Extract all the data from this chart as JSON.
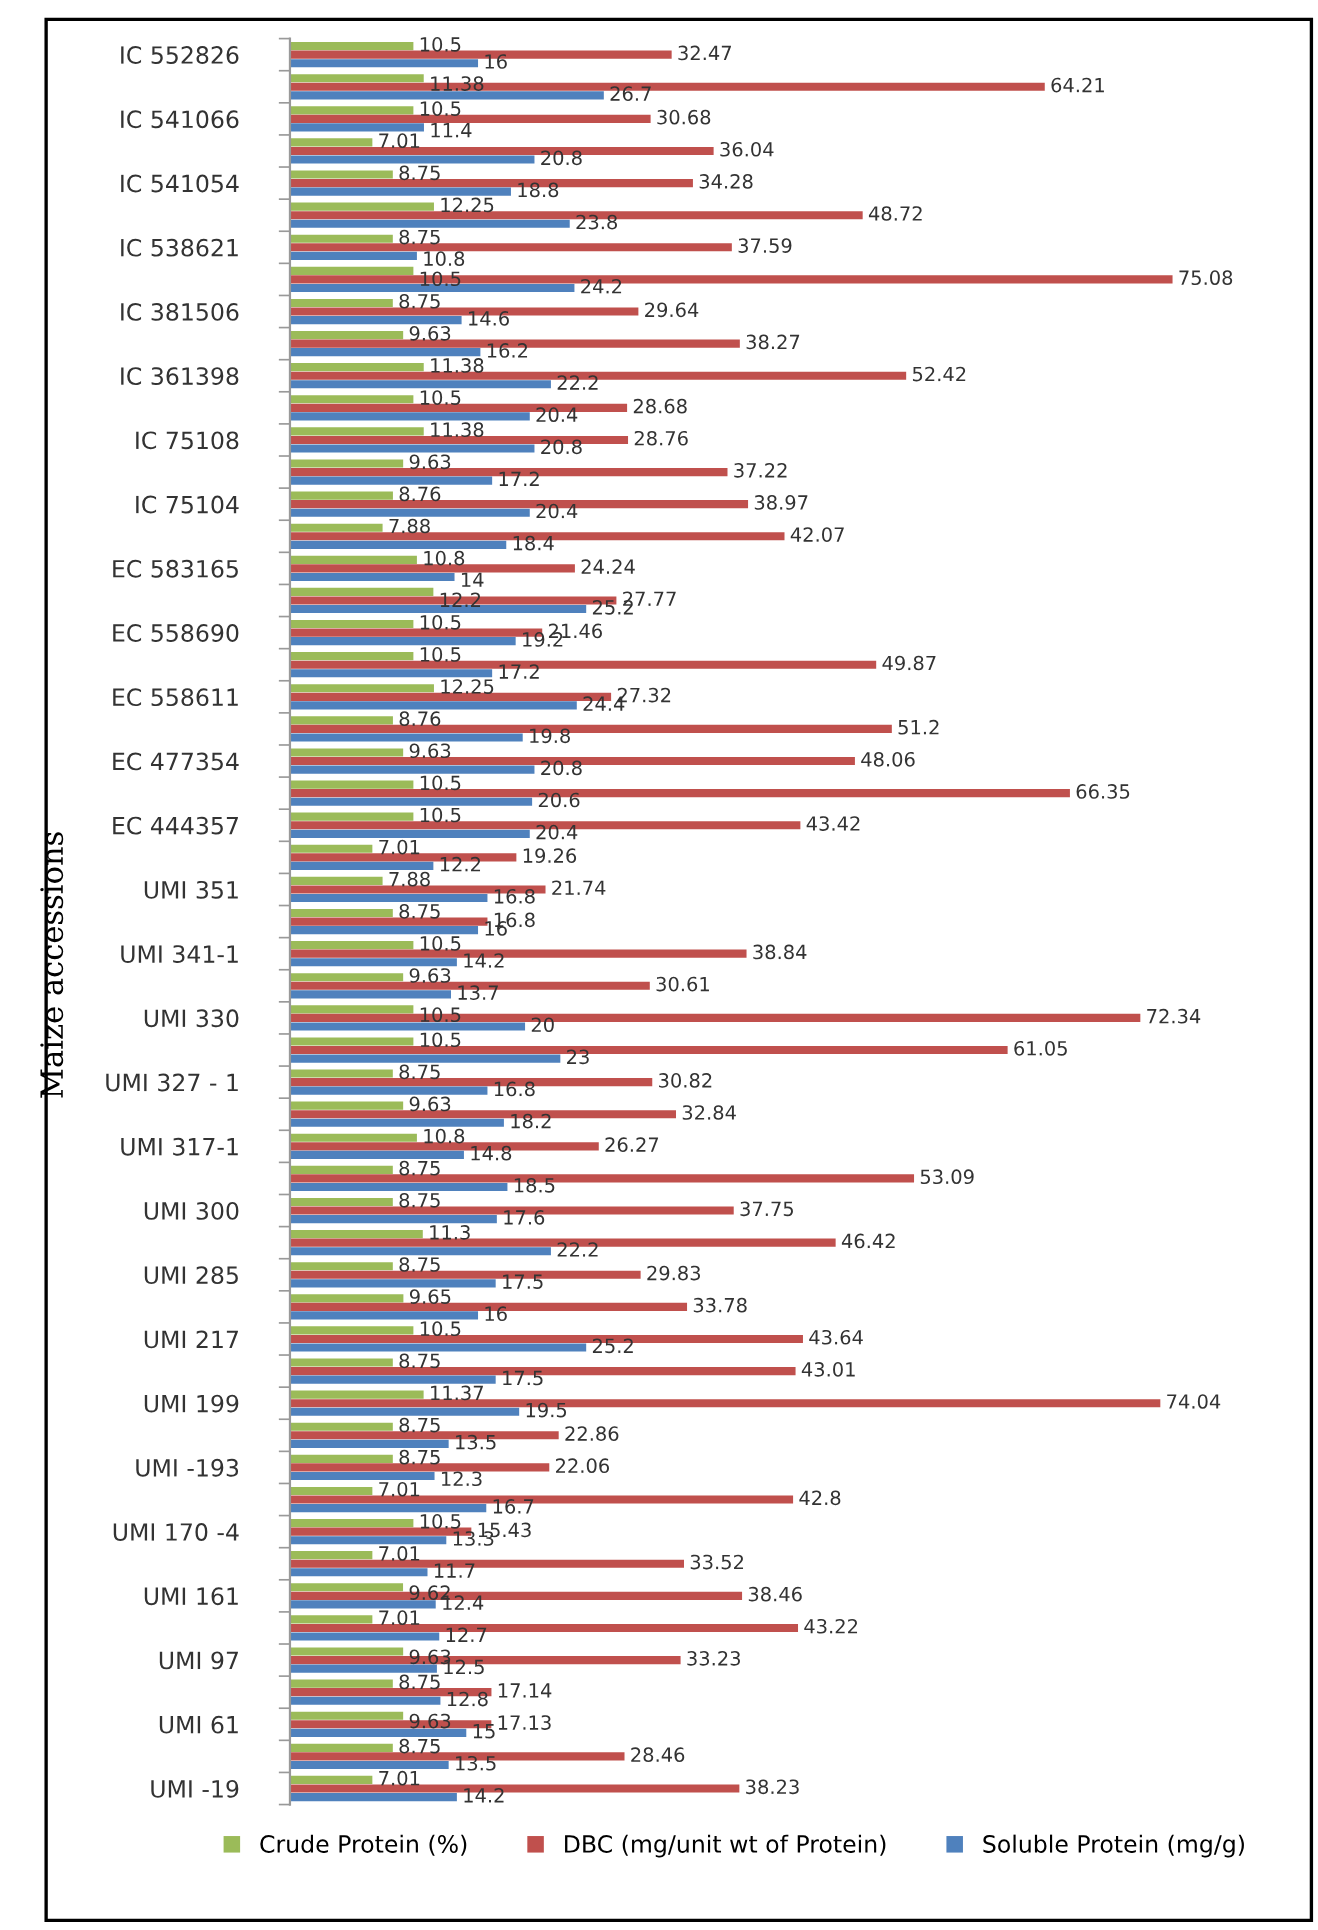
{
  "chart_data": {
    "type": "bar",
    "orientation": "horizontal",
    "ylabel": "Maize accessions",
    "data_labels": true,
    "legend": "bottom",
    "grid": false,
    "categories": [
      "IC 552826",
      null,
      "IC 541066",
      null,
      "IC 541054",
      null,
      "IC 538621",
      null,
      "IC 381506",
      null,
      "IC 361398",
      null,
      "IC 75108",
      null,
      "IC 75104",
      null,
      "EC 583165",
      null,
      "EC 558690",
      null,
      "EC 558611",
      null,
      "EC 477354",
      null,
      "EC 444357",
      null,
      "UMI 351",
      null,
      "UMI 341-1",
      null,
      "UMI 330",
      null,
      "UMI 327 - 1",
      null,
      "UMI 317-1",
      null,
      "UMI 300",
      null,
      "UMI 285",
      null,
      "UMI 217",
      null,
      "UMI 199",
      null,
      "UMI -193",
      null,
      "UMI 170 -4",
      null,
      "UMI 161",
      null,
      "UMI 97",
      null,
      "UMI 61",
      null,
      "UMI -19"
    ],
    "series": [
      {
        "name": "Crude Protein (%)",
        "color": "#9bbb59",
        "values": [
          10.5,
          11.38,
          10.5,
          7.01,
          8.75,
          12.25,
          8.75,
          10.5,
          8.75,
          9.63,
          11.38,
          10.5,
          11.38,
          9.63,
          8.76,
          7.88,
          10.8,
          12.2,
          10.5,
          10.5,
          12.25,
          8.76,
          9.63,
          10.5,
          10.5,
          7.01,
          7.88,
          8.75,
          10.5,
          9.63,
          10.5,
          10.5,
          8.75,
          9.63,
          10.8,
          8.75,
          8.75,
          11.3,
          8.75,
          9.65,
          10.5,
          8.75,
          11.37,
          8.75,
          8.75,
          7.01,
          10.5,
          7.01,
          9.62,
          7.01,
          9.63,
          8.75,
          9.63,
          8.75,
          7.01
        ]
      },
      {
        "name": "DBC (mg/unit wt of Protein)",
        "color": "#c0504d",
        "values": [
          32.47,
          64.21,
          30.68,
          36.04,
          34.28,
          48.72,
          37.59,
          75.08,
          29.64,
          38.27,
          52.42,
          28.68,
          28.76,
          37.22,
          38.97,
          42.07,
          24.24,
          27.77,
          21.46,
          49.87,
          27.32,
          51.2,
          48.06,
          66.35,
          43.42,
          19.26,
          21.74,
          16.8,
          38.84,
          30.61,
          72.34,
          61.05,
          30.82,
          32.84,
          26.27,
          53.09,
          37.75,
          46.42,
          29.83,
          33.78,
          43.64,
          43.01,
          74.04,
          22.86,
          22.06,
          42.8,
          15.43,
          33.52,
          38.46,
          43.22,
          33.23,
          17.14,
          17.13,
          28.46,
          38.23
        ]
      },
      {
        "name": "Soluble Protein (mg/g)",
        "color": "#4f81bd",
        "values": [
          16,
          26.7,
          11.4,
          20.8,
          18.8,
          23.8,
          10.8,
          24.2,
          14.6,
          16.2,
          22.2,
          20.4,
          20.8,
          17.2,
          20.4,
          18.4,
          14,
          25.2,
          19.2,
          17.2,
          24.4,
          19.8,
          20.8,
          20.6,
          20.4,
          12.2,
          16.8,
          16,
          14.2,
          13.7,
          20,
          23,
          16.8,
          18.2,
          14.8,
          18.5,
          17.6,
          22.2,
          17.5,
          16,
          25.2,
          17.5,
          19.5,
          13.5,
          12.3,
          16.7,
          13.3,
          11.7,
          12.4,
          12.7,
          12.5,
          12.8,
          15,
          13.5,
          14.2
        ]
      }
    ]
  }
}
